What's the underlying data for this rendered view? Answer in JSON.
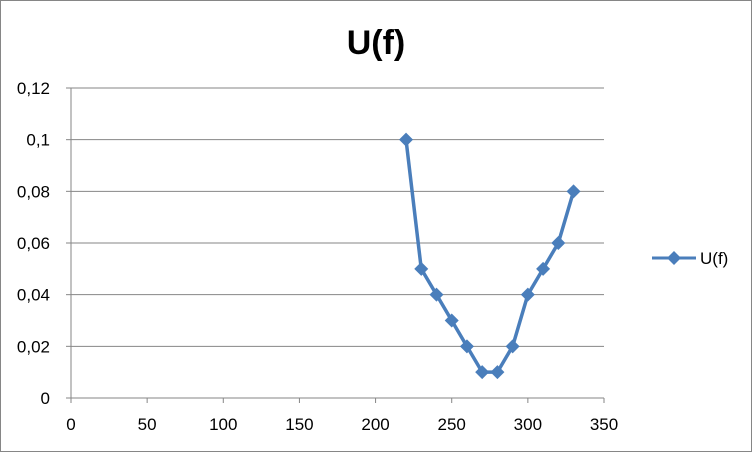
{
  "chart_data": {
    "type": "line",
    "title": "U(f)",
    "xlabel": "",
    "ylabel": "",
    "xlim": [
      0,
      350
    ],
    "ylim": [
      0,
      0.12
    ],
    "x_ticks": [
      "0",
      "50",
      "100",
      "150",
      "200",
      "250",
      "300",
      "350"
    ],
    "y_ticks": [
      "0",
      "0,02",
      "0,04",
      "0,06",
      "0,08",
      "0,1",
      "0,12"
    ],
    "grid": true,
    "legend_position": "right",
    "series": [
      {
        "name": "U(f)",
        "color": "#4a7ebb",
        "marker": "diamond",
        "x": [
          220,
          230,
          240,
          250,
          260,
          270,
          280,
          290,
          300,
          310,
          320,
          330
        ],
        "y": [
          0.1,
          0.05,
          0.04,
          0.03,
          0.02,
          0.01,
          0.01,
          0.02,
          0.04,
          0.05,
          0.06,
          0.08
        ]
      }
    ]
  }
}
